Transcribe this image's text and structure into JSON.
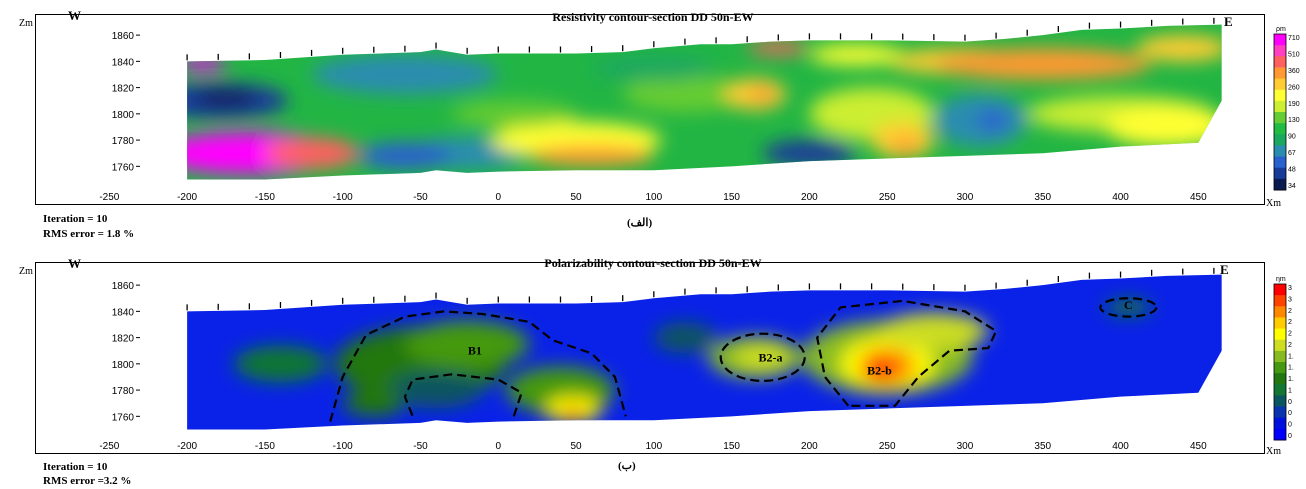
{
  "chart_data": [
    {
      "type": "heatmap",
      "title": "Resistivity contour-section DD 50n-EW",
      "ylabel": "Zm",
      "xlabel": "Xm",
      "west_label": "W",
      "east_label": "E",
      "xlim": [
        -220,
        480
      ],
      "ylim": [
        1745,
        1870
      ],
      "x_ticks": [
        -250,
        -200,
        -150,
        -100,
        -50,
        0,
        50,
        100,
        150,
        200,
        250,
        300,
        350,
        400,
        450
      ],
      "y_ticks": [
        1760,
        1780,
        1800,
        1820,
        1840,
        1860
      ],
      "colorbar_unit": "ρm",
      "colorbar_ticks": [
        "710",
        "510",
        "360",
        "260",
        "190",
        "130",
        "90",
        "67",
        "48",
        "34"
      ],
      "colorbar_colors": [
        "#ff00ff",
        "#ff40c0",
        "#ff6060",
        "#ff9933",
        "#ffcc33",
        "#ffff33",
        "#ccee33",
        "#66cc33",
        "#22bb44",
        "#1aa860",
        "#2a8cb0",
        "#2a5fd0",
        "#1a3a9a",
        "#0a1a50"
      ],
      "iteration_text": "Iteration = 10",
      "rms_text": "RMS error  = 1.8 %",
      "sublabel": "(الف)",
      "surface_profile": [
        [
          -200,
          1840
        ],
        [
          -150,
          1841
        ],
        [
          -100,
          1845
        ],
        [
          -50,
          1847
        ],
        [
          -40,
          1849
        ],
        [
          -20,
          1845
        ],
        [
          0,
          1846
        ],
        [
          50,
          1846
        ],
        [
          80,
          1847
        ],
        [
          100,
          1850
        ],
        [
          130,
          1853
        ],
        [
          150,
          1853
        ],
        [
          175,
          1855
        ],
        [
          200,
          1856
        ],
        [
          250,
          1856
        ],
        [
          300,
          1855
        ],
        [
          325,
          1857
        ],
        [
          350,
          1860
        ],
        [
          375,
          1864
        ],
        [
          400,
          1865
        ],
        [
          430,
          1867
        ],
        [
          465,
          1868
        ]
      ],
      "bottom_profile": [
        [
          -200,
          1750
        ],
        [
          -150,
          1750
        ],
        [
          -100,
          1753
        ],
        [
          -50,
          1755
        ],
        [
          -40,
          1757
        ],
        [
          -20,
          1755
        ],
        [
          0,
          1756
        ],
        [
          50,
          1757
        ],
        [
          100,
          1757
        ],
        [
          150,
          1760
        ],
        [
          200,
          1764
        ],
        [
          250,
          1766
        ],
        [
          300,
          1768
        ],
        [
          350,
          1770
        ],
        [
          400,
          1775
        ],
        [
          450,
          1778
        ],
        [
          465,
          1810
        ]
      ],
      "anomaly_labels": []
    },
    {
      "type": "heatmap",
      "title": "Polarizability contour-section DD 50n-EW",
      "ylabel": "Zm",
      "xlabel": "Xm",
      "west_label": "W",
      "east_label": "E",
      "xlim": [
        -220,
        480
      ],
      "ylim": [
        1745,
        1870
      ],
      "x_ticks": [
        -250,
        -200,
        -150,
        -100,
        -50,
        0,
        50,
        100,
        150,
        200,
        250,
        300,
        350,
        400,
        450
      ],
      "y_ticks": [
        1760,
        1780,
        1800,
        1820,
        1840,
        1860
      ],
      "colorbar_unit": "ηm",
      "colorbar_ticks": [
        "3",
        "3",
        "2",
        "2",
        "2",
        "2",
        "1.",
        "1.",
        "1.",
        "1",
        "0",
        "0",
        "0",
        "0"
      ],
      "colorbar_colors": [
        "#ff0000",
        "#ff4400",
        "#ff8800",
        "#ffcc00",
        "#ffff00",
        "#ccdd22",
        "#88bb22",
        "#449911",
        "#227711",
        "#117733",
        "#0a5560",
        "#0a33b0",
        "#0011dd",
        "#0000ff"
      ],
      "iteration_text": "Iteration = 10",
      "rms_text": "RMS error  =3.2 %",
      "sublabel": "(ب)",
      "surface_profile": [
        [
          -200,
          1840
        ],
        [
          -150,
          1841
        ],
        [
          -100,
          1845
        ],
        [
          -50,
          1847
        ],
        [
          -40,
          1849
        ],
        [
          -20,
          1845
        ],
        [
          0,
          1846
        ],
        [
          50,
          1846
        ],
        [
          80,
          1847
        ],
        [
          100,
          1850
        ],
        [
          130,
          1853
        ],
        [
          150,
          1853
        ],
        [
          175,
          1855
        ],
        [
          200,
          1856
        ],
        [
          250,
          1856
        ],
        [
          300,
          1855
        ],
        [
          325,
          1857
        ],
        [
          350,
          1860
        ],
        [
          375,
          1864
        ],
        [
          400,
          1865
        ],
        [
          430,
          1867
        ],
        [
          465,
          1868
        ]
      ],
      "bottom_profile": [
        [
          -200,
          1750
        ],
        [
          -150,
          1750
        ],
        [
          -100,
          1753
        ],
        [
          -50,
          1755
        ],
        [
          -40,
          1757
        ],
        [
          -20,
          1755
        ],
        [
          0,
          1756
        ],
        [
          50,
          1757
        ],
        [
          100,
          1757
        ],
        [
          150,
          1760
        ],
        [
          200,
          1764
        ],
        [
          250,
          1766
        ],
        [
          300,
          1768
        ],
        [
          350,
          1770
        ],
        [
          400,
          1775
        ],
        [
          450,
          1778
        ],
        [
          465,
          1810
        ]
      ],
      "anomaly_labels": [
        {
          "label": "B1",
          "x": -15,
          "y": 1810
        },
        {
          "label": "B2-a",
          "x": 175,
          "y": 1805
        },
        {
          "label": "B2-b",
          "x": 245,
          "y": 1795
        },
        {
          "label": "C",
          "x": 405,
          "y": 1845
        }
      ]
    }
  ]
}
